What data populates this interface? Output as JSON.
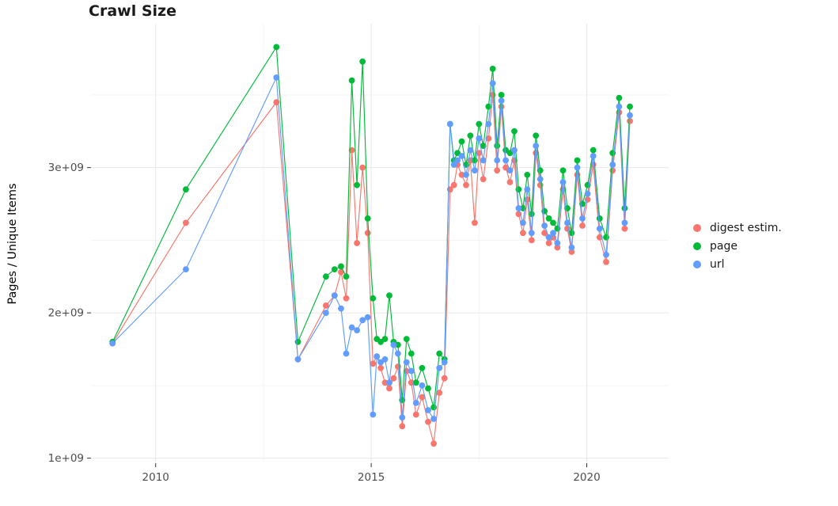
{
  "title": "Crawl Size",
  "chart_data": {
    "type": "line",
    "title": "Crawl Size",
    "xlabel": "",
    "ylabel": "Pages / Unique Items",
    "value_scale": 1000000000,
    "value_unit": "pages (billions)",
    "x_domain": [
      2008.5,
      2021.9
    ],
    "y_domain_billions": [
      0.965,
      3.99
    ],
    "grid": true,
    "legend_position": "right",
    "x_ticks": [
      {
        "value": 2010,
        "label": "2010"
      },
      {
        "value": 2015,
        "label": "2015"
      },
      {
        "value": 2020,
        "label": "2020"
      }
    ],
    "y_ticks": [
      {
        "value": 1,
        "label": "1e+09"
      },
      {
        "value": 2,
        "label": "2e+09"
      },
      {
        "value": 3,
        "label": "3e+09"
      }
    ],
    "x_minor_ticks": [
      2012.5,
      2017.5
    ],
    "y_minor_ticks": [
      1.5,
      2.5,
      3.5
    ],
    "x": [
      2009.0,
      2010.7,
      2012.8,
      2013.3,
      2013.95,
      2014.15,
      2014.3,
      2014.42,
      2014.55,
      2014.67,
      2014.8,
      2014.92,
      2015.04,
      2015.13,
      2015.22,
      2015.32,
      2015.42,
      2015.52,
      2015.62,
      2015.72,
      2015.82,
      2015.93,
      2016.04,
      2016.18,
      2016.32,
      2016.45,
      2016.58,
      2016.7,
      2016.83,
      2016.92,
      2017.0,
      2017.1,
      2017.2,
      2017.3,
      2017.4,
      2017.5,
      2017.6,
      2017.72,
      2017.82,
      2017.92,
      2018.02,
      2018.12,
      2018.22,
      2018.32,
      2018.42,
      2018.52,
      2018.62,
      2018.72,
      2018.82,
      2018.92,
      2019.02,
      2019.12,
      2019.22,
      2019.32,
      2019.45,
      2019.55,
      2019.65,
      2019.78,
      2019.9,
      2020.02,
      2020.15,
      2020.3,
      2020.45,
      2020.6,
      2020.75,
      2020.88,
      2021.0
    ],
    "series": [
      {
        "name": "digest estim.",
        "color": "#F8766D",
        "values_billions": [
          1.79,
          2.62,
          3.45,
          1.68,
          2.05,
          2.12,
          2.28,
          2.1,
          3.12,
          2.48,
          3.0,
          2.55,
          1.65,
          1.7,
          1.62,
          1.52,
          1.48,
          1.55,
          1.63,
          1.22,
          1.6,
          1.52,
          1.3,
          1.42,
          1.25,
          1.1,
          1.45,
          1.55,
          2.85,
          2.88,
          3.02,
          2.95,
          2.88,
          3.05,
          2.62,
          3.1,
          2.92,
          3.2,
          3.5,
          2.98,
          3.42,
          3.0,
          2.9,
          3.05,
          2.68,
          2.55,
          2.78,
          2.5,
          3.1,
          2.88,
          2.55,
          2.48,
          2.52,
          2.45,
          2.85,
          2.58,
          2.42,
          2.95,
          2.6,
          2.78,
          3.02,
          2.52,
          2.35,
          2.98,
          3.38,
          2.58,
          3.32
        ]
      },
      {
        "name": "page",
        "color": "#00BA38",
        "values_billions": [
          1.8,
          2.85,
          3.83,
          1.8,
          2.25,
          2.3,
          2.32,
          2.25,
          3.6,
          2.88,
          3.73,
          2.65,
          2.1,
          1.82,
          1.8,
          1.82,
          2.12,
          1.8,
          1.78,
          1.4,
          1.82,
          1.72,
          1.52,
          1.62,
          1.48,
          1.35,
          1.72,
          1.68,
          3.3,
          3.05,
          3.1,
          3.18,
          3.02,
          3.22,
          3.05,
          3.3,
          3.15,
          3.42,
          3.68,
          3.15,
          3.5,
          3.12,
          3.1,
          3.25,
          2.85,
          2.72,
          2.95,
          2.68,
          3.22,
          2.98,
          2.7,
          2.65,
          2.62,
          2.58,
          2.98,
          2.72,
          2.55,
          3.05,
          2.75,
          2.88,
          3.12,
          2.65,
          2.52,
          3.1,
          3.48,
          2.72,
          3.42
        ]
      },
      {
        "name": "url",
        "color": "#619CFF",
        "values_billions": [
          1.79,
          2.3,
          3.62,
          1.68,
          2.0,
          2.12,
          2.03,
          1.72,
          1.9,
          1.88,
          1.95,
          1.97,
          1.3,
          1.7,
          1.66,
          1.68,
          1.52,
          1.78,
          1.72,
          1.28,
          1.66,
          1.6,
          1.38,
          1.5,
          1.33,
          1.27,
          1.62,
          1.66,
          3.3,
          3.02,
          3.05,
          3.08,
          2.95,
          3.12,
          2.98,
          3.2,
          3.05,
          3.3,
          3.58,
          3.05,
          3.46,
          3.05,
          2.98,
          3.12,
          2.72,
          2.62,
          2.85,
          2.55,
          3.15,
          2.92,
          2.6,
          2.52,
          2.55,
          2.48,
          2.9,
          2.62,
          2.45,
          3.0,
          2.65,
          2.82,
          3.08,
          2.58,
          2.4,
          3.02,
          3.42,
          2.62,
          3.36
        ]
      }
    ],
    "legend_labels": [
      "digest estim.",
      "page",
      "url"
    ]
  }
}
